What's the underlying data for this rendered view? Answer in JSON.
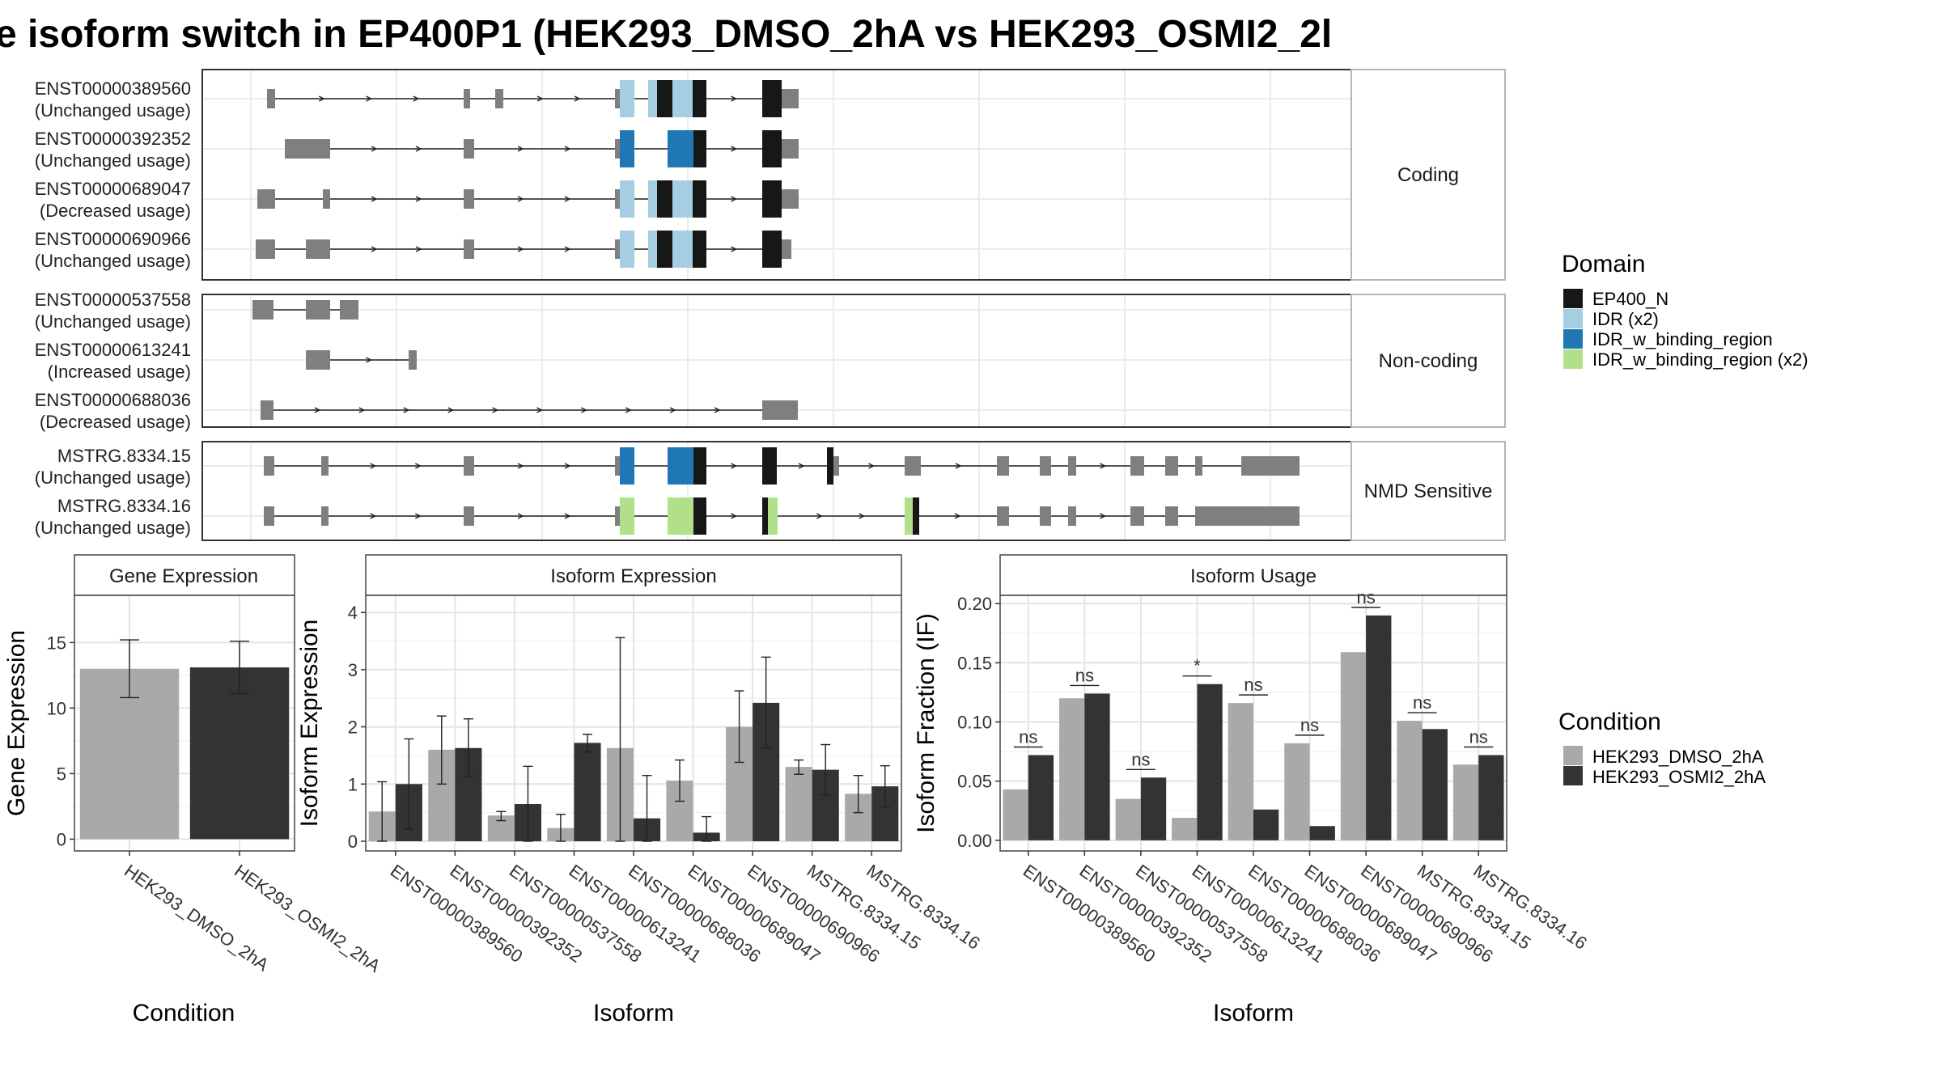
{
  "title": "e isoform switch in EP400P1 (HEK293_DMSO_2hA vs HEK293_OSMI2_2l",
  "colors": {
    "exon": "#7f7f7f",
    "EP400_N": "#171717",
    "IDR": "#a6cee3",
    "IDR_w_binding_region": "#1f78b4",
    "IDR_w_binding_region_x2": "#b2df8a",
    "condA": "#a9a9a9",
    "condB": "#333333"
  },
  "structure": {
    "groups": [
      {
        "label": "Coding",
        "transcripts": [
          {
            "id": "ENST00000389560",
            "usage": "(Unchanged usage)"
          },
          {
            "id": "ENST00000392352",
            "usage": "(Unchanged usage)"
          },
          {
            "id": "ENST00000689047",
            "usage": "(Decreased usage)"
          },
          {
            "id": "ENST00000690966",
            "usage": "(Unchanged usage)"
          }
        ]
      },
      {
        "label": "Non-coding",
        "transcripts": [
          {
            "id": "ENST00000537558",
            "usage": "(Unchanged usage)"
          },
          {
            "id": "ENST00000613241",
            "usage": "(Increased usage)"
          },
          {
            "id": "ENST00000688036",
            "usage": "(Decreased usage)"
          }
        ]
      },
      {
        "label": "NMD Sensitive",
        "transcripts": [
          {
            "id": "MSTRG.8334.15",
            "usage": "(Unchanged usage)"
          },
          {
            "id": "MSTRG.8334.16",
            "usage": "(Unchanged usage)"
          }
        ]
      }
    ],
    "domain_legend": {
      "title": "Domain",
      "items": [
        "EP400_N",
        "IDR (x2)",
        "IDR_w_binding_region",
        "IDR_w_binding_region (x2)"
      ]
    }
  },
  "condition_legend": {
    "title": "Condition",
    "items": [
      "HEK293_DMSO_2hA",
      "HEK293_OSMI2_2hA"
    ]
  },
  "chart_data": [
    {
      "type": "bar",
      "title": "Gene Expression",
      "xlabel": "Condition",
      "ylabel": "Gene Expression",
      "categories": [
        "HEK293_DMSO_2hA",
        "HEK293_OSMI2_2hA"
      ],
      "values": [
        13.0,
        13.1
      ],
      "errors": [
        [
          10.8,
          15.2
        ],
        [
          11.1,
          15.1
        ]
      ],
      "yticks": [
        0,
        5,
        10,
        15
      ],
      "ylim": [
        -0.9,
        18.6
      ],
      "grid": true
    },
    {
      "type": "bar",
      "title": "Isoform Expression",
      "xlabel": "Isoform",
      "ylabel": "Isoform Expression",
      "categories": [
        "ENST00000389560",
        "ENST00000392352",
        "ENST00000537558",
        "ENST00000613241",
        "ENST00000688036",
        "ENST00000689047",
        "ENST00000690966",
        "MSTRG.8334.15",
        "MSTRG.8334.16"
      ],
      "series": [
        {
          "name": "HEK293_DMSO_2hA",
          "values": [
            0.52,
            1.6,
            0.45,
            0.23,
            1.63,
            1.06,
            2.0,
            1.3,
            0.83
          ],
          "errors": [
            [
              0.0,
              1.04
            ],
            [
              1.0,
              2.19
            ],
            [
              0.36,
              0.52
            ],
            [
              0.0,
              0.47
            ],
            [
              0.0,
              3.56
            ],
            [
              0.7,
              1.42
            ],
            [
              1.38,
              2.63
            ],
            [
              1.17,
              1.42
            ],
            [
              0.5,
              1.15
            ]
          ]
        },
        {
          "name": "HEK293_OSMI2_2hA",
          "values": [
            1.0,
            1.63,
            0.65,
            1.72,
            0.4,
            0.15,
            2.42,
            1.25,
            0.96
          ],
          "errors": [
            [
              0.21,
              1.79
            ],
            [
              1.13,
              2.14
            ],
            [
              0.0,
              1.31
            ],
            [
              1.56,
              1.87
            ],
            [
              0.0,
              1.15
            ],
            [
              0.0,
              0.43
            ],
            [
              1.63,
              3.22
            ],
            [
              0.81,
              1.69
            ],
            [
              0.6,
              1.32
            ]
          ]
        }
      ],
      "yticks": [
        0,
        1,
        2,
        3,
        4
      ],
      "ylim": [
        -0.17,
        4.3
      ],
      "grid": true
    },
    {
      "type": "bar",
      "title": "Isoform Usage",
      "xlabel": "Isoform",
      "ylabel": "Isoform Fraction (IF)",
      "categories": [
        "ENST00000389560",
        "ENST00000392352",
        "ENST00000537558",
        "ENST00000613241",
        "ENST00000688036",
        "ENST00000689047",
        "ENST00000690966",
        "MSTRG.8334.15",
        "MSTRG.8334.16"
      ],
      "series": [
        {
          "name": "HEK293_DMSO_2hA",
          "values": [
            0.043,
            0.12,
            0.035,
            0.019,
            0.116,
            0.082,
            0.159,
            0.101,
            0.064
          ]
        },
        {
          "name": "HEK293_OSMI2_2hA",
          "values": [
            0.072,
            0.124,
            0.053,
            0.132,
            0.026,
            0.012,
            0.19,
            0.094,
            0.072
          ]
        }
      ],
      "significance": [
        "ns",
        "ns",
        "ns",
        "*",
        "ns",
        "ns",
        "ns",
        "ns",
        "ns"
      ],
      "yticks": [
        0.0,
        0.05,
        0.1,
        0.15,
        0.2
      ],
      "ytick_labels": [
        "0.00",
        "0.05",
        "0.10",
        "0.15",
        "0.20"
      ],
      "ylim": [
        -0.009,
        0.207
      ],
      "grid": true
    }
  ]
}
